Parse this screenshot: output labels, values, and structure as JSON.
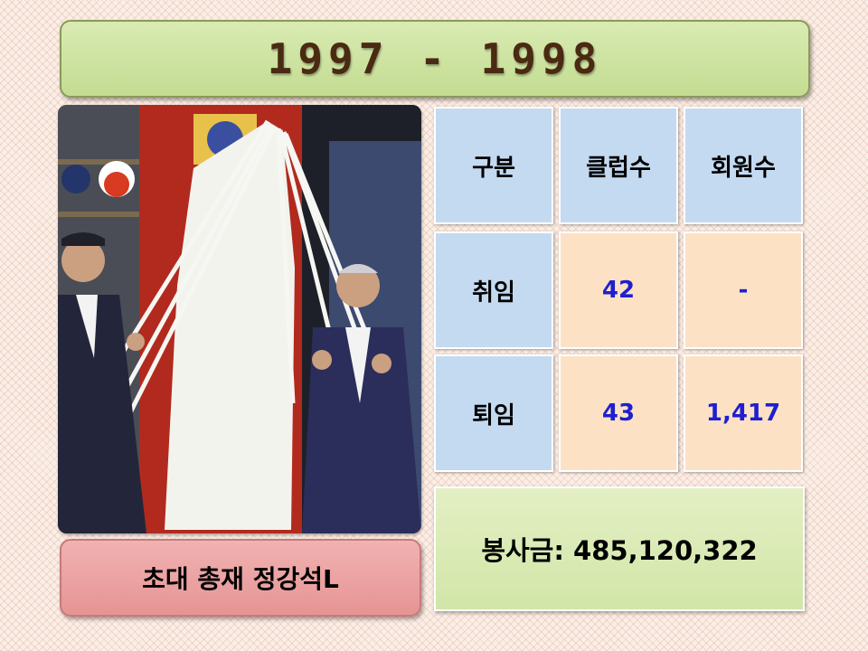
{
  "title": "1997 - 1998",
  "photo": {
    "subject": "unveiling-ceremony-photo"
  },
  "caption": "초대 총재 정강석L",
  "table": {
    "headers": [
      "구분",
      "클럽수",
      "회원수"
    ],
    "rows": [
      {
        "label": "취임",
        "clubs": "42",
        "members": "-"
      },
      {
        "label": "퇴임",
        "clubs": "43",
        "members": "1,417"
      }
    ]
  },
  "fund": "봉사금: 485,120,322",
  "colors": {
    "title_bg": "#c3dc92",
    "caption_bg": "#e69494",
    "header_cell": "#c4daf1",
    "value_cell": "#fde1c4",
    "value_text": "#1f1fd0"
  }
}
